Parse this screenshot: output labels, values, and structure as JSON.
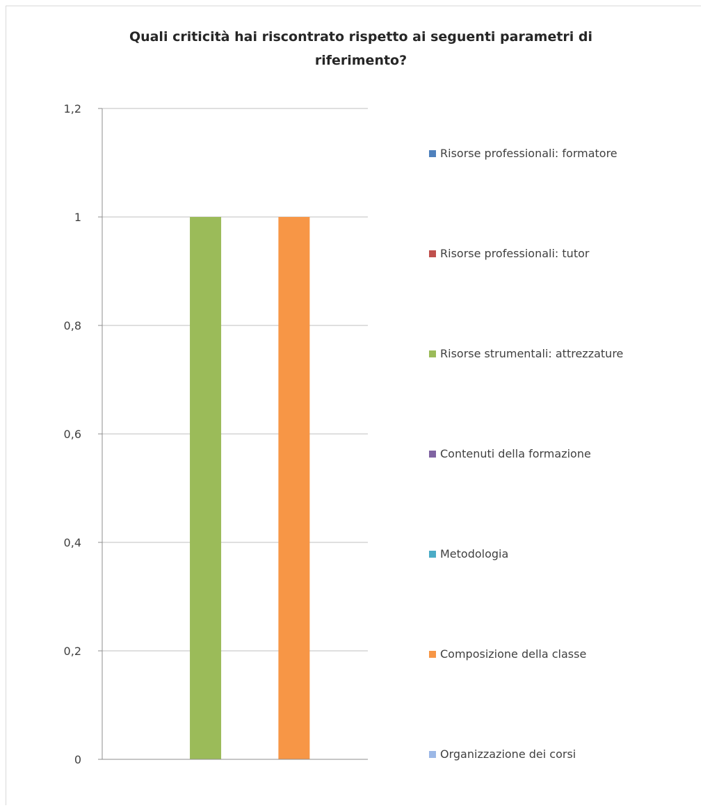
{
  "chart_data": {
    "type": "bar",
    "title_lines": [
      "Quali criticità hai riscontrato rispetto ai seguenti parametri di",
      "riferimento?"
    ],
    "xlabel": "",
    "ylabel": "",
    "ylim": [
      0,
      1.2
    ],
    "yticks": [
      {
        "value": 0,
        "label": "0"
      },
      {
        "value": 0.2,
        "label": "0,2"
      },
      {
        "value": 0.4,
        "label": "0,4"
      },
      {
        "value": 0.6,
        "label": "0,6"
      },
      {
        "value": 0.8,
        "label": "0,8"
      },
      {
        "value": 1,
        "label": "1"
      },
      {
        "value": 1.2,
        "label": "1,2"
      }
    ],
    "grid": true,
    "legend_position": "right",
    "series": [
      {
        "name": "Risorse professionali: formatore",
        "color": "#4f81bd",
        "value": 0
      },
      {
        "name": "Risorse professionali: tutor",
        "color": "#c0504d",
        "value": 0
      },
      {
        "name": "Risorse strumentali: attrezzature",
        "color": "#9bbb59",
        "value": 1
      },
      {
        "name": "Contenuti della formazione",
        "color": "#8064a2",
        "value": 0
      },
      {
        "name": "Metodologia",
        "color": "#4bacc6",
        "value": 0
      },
      {
        "name": "Composizione della classe",
        "color": "#f79646",
        "value": 1
      },
      {
        "name": "Organizzazione dei corsi",
        "color": "#9cb8e6",
        "value": 0
      }
    ]
  }
}
